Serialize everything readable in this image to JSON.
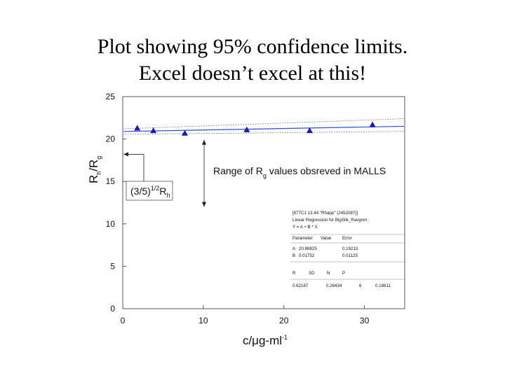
{
  "title": {
    "line1": "Plot showing 95% confidence limits.",
    "line2": "Excel doesn’t excel at this!"
  },
  "chart_data": {
    "type": "scatter",
    "xlabel": {
      "pre": "c/",
      "mu": "μ",
      "mid": "g-ml",
      "sup": "-1"
    },
    "ylabel": {
      "r1": "R",
      "r1sub": "h",
      "slash": "/",
      "r2": "R",
      "r2sub": "g"
    },
    "xlim": [
      0,
      35
    ],
    "ylim": [
      0,
      25
    ],
    "xticks": [
      0,
      10,
      20,
      30
    ],
    "yticks": [
      0,
      5,
      10,
      15,
      20,
      25
    ],
    "x": [
      1.8,
      3.8,
      7.7,
      15.4,
      23.2,
      31.0
    ],
    "y": [
      21.3,
      21.0,
      20.7,
      21.1,
      21.0,
      21.7
    ],
    "marker_color": "#1a1ab0",
    "fit": {
      "intercept": 20.88825,
      "slope": 0.01752,
      "color": "#2b4fd8"
    },
    "confidence": {
      "lower_at_x0": 20.55,
      "upper_at_x0": 21.2,
      "lower_at_xmax": 20.9,
      "upper_at_xmax": 22.4,
      "style": "dotted"
    },
    "ref_line": {
      "y": 18.2,
      "text_pre": "(3/5)",
      "text_sup": "1/2",
      "text_main": "R",
      "text_sub": "h"
    },
    "annotation": {
      "text_pre": "Range of R",
      "text_sub": "g",
      "text_post": " values obsreved in MALLS",
      "y_top": 19.9,
      "y_bottom": 12.0
    },
    "stats_box": {
      "header": "[677C1 13.44 \"Rhapp\" (2452087)]",
      "subheader": "Linear Regression for BigSilk_Ravgnm:",
      "equation": "Y = A + B * X",
      "param_cols": [
        "Parameter",
        "Value",
        "Error"
      ],
      "params": [
        [
          "A",
          "20.88825",
          "0.19213"
        ],
        [
          "B",
          "0.01752",
          "0.01125"
        ]
      ],
      "stat_cols": [
        "R",
        "SD",
        "N",
        "P"
      ],
      "stat_values": [
        "0.62187",
        "0.28434",
        "6",
        "0.18611"
      ]
    }
  }
}
